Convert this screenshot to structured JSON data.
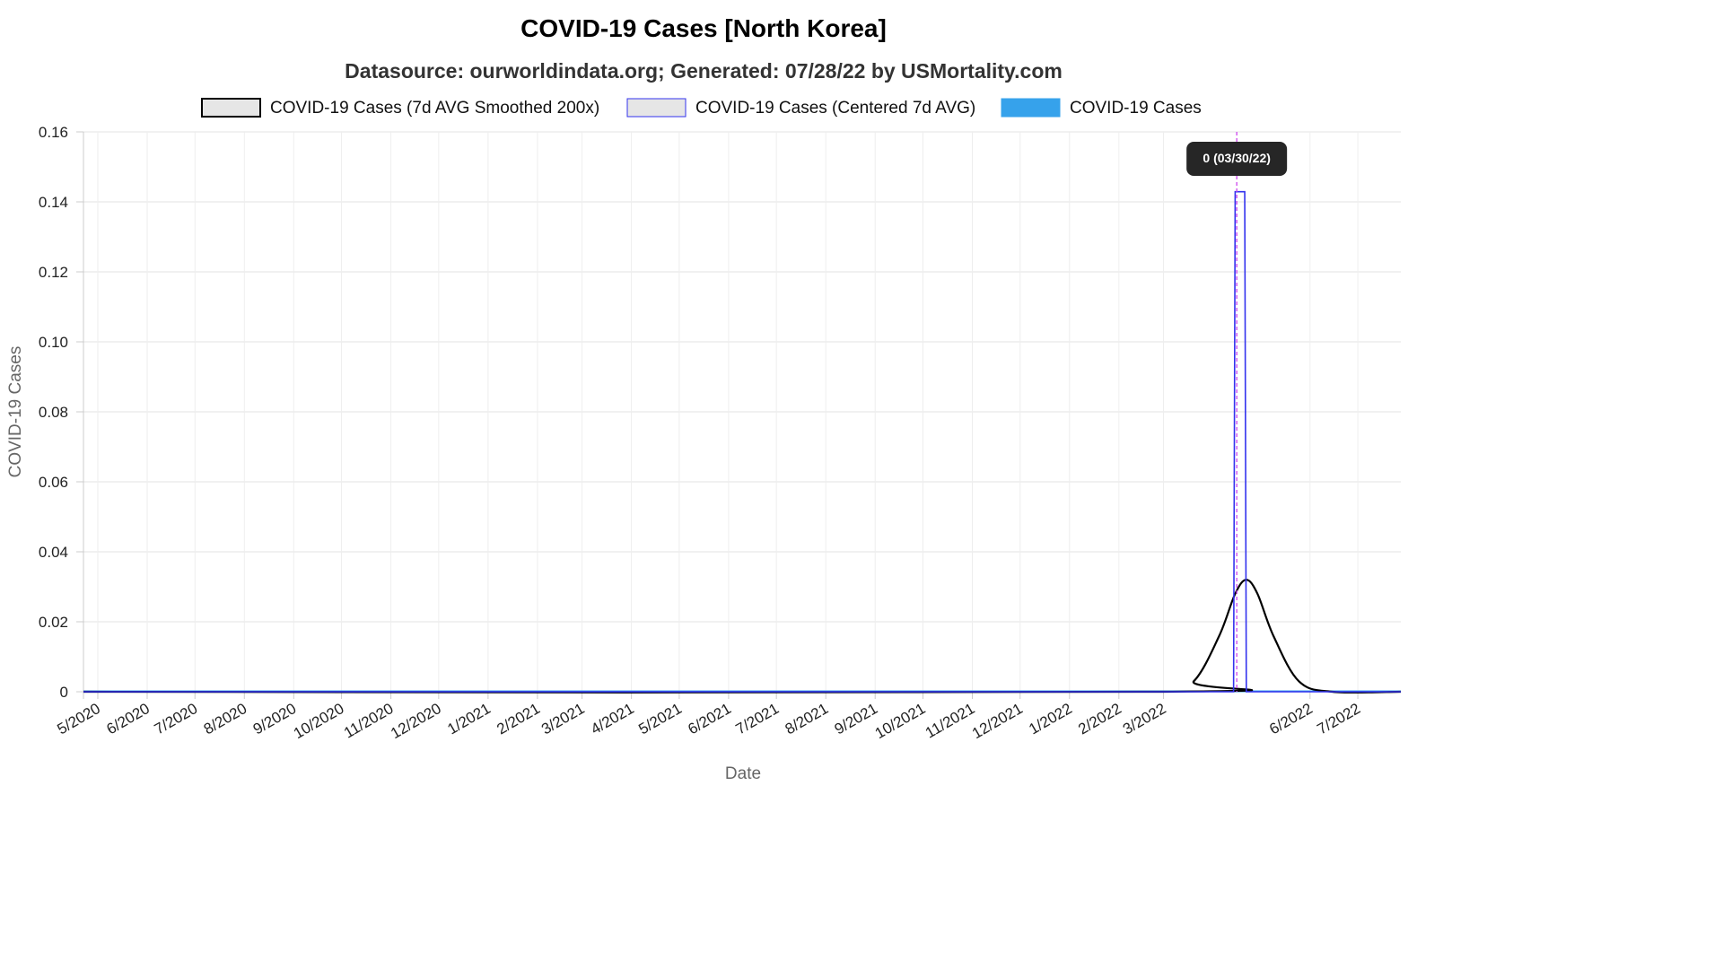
{
  "chart_data": {
    "type": "line",
    "title": "COVID-19 Cases [North Korea]",
    "subtitle": "Datasource: ourworldindata.org; Generated: 07/28/22 by USMortality.com",
    "xlabel": "Date",
    "ylabel": "COVID-19 Cases",
    "x_range": [
      "2020-04-22",
      "2022-07-28"
    ],
    "ylim": [
      0,
      0.16
    ],
    "y_ticks": [
      "0",
      "0.02",
      "0.04",
      "0.06",
      "0.08",
      "0.10",
      "0.12",
      "0.14",
      "0.16"
    ],
    "y_tick_values": [
      0,
      0.02,
      0.04,
      0.06,
      0.08,
      0.1,
      0.12,
      0.14,
      0.16
    ],
    "x_ticks": [
      {
        "label": "5/2020",
        "date": "2020-05-01"
      },
      {
        "label": "6/2020",
        "date": "2020-06-01"
      },
      {
        "label": "7/2020",
        "date": "2020-07-01"
      },
      {
        "label": "8/2020",
        "date": "2020-08-01"
      },
      {
        "label": "9/2020",
        "date": "2020-09-01"
      },
      {
        "label": "10/2020",
        "date": "2020-10-01"
      },
      {
        "label": "11/2020",
        "date": "2020-11-01"
      },
      {
        "label": "12/2020",
        "date": "2020-12-01"
      },
      {
        "label": "1/2021",
        "date": "2021-01-01"
      },
      {
        "label": "2/2021",
        "date": "2021-02-01"
      },
      {
        "label": "3/2021",
        "date": "2021-03-01"
      },
      {
        "label": "4/2021",
        "date": "2021-04-01"
      },
      {
        "label": "5/2021",
        "date": "2021-05-01"
      },
      {
        "label": "6/2021",
        "date": "2021-06-01"
      },
      {
        "label": "7/2021",
        "date": "2021-07-01"
      },
      {
        "label": "8/2021",
        "date": "2021-08-01"
      },
      {
        "label": "9/2021",
        "date": "2021-09-01"
      },
      {
        "label": "10/2021",
        "date": "2021-10-01"
      },
      {
        "label": "11/2021",
        "date": "2021-11-01"
      },
      {
        "label": "12/2021",
        "date": "2021-12-01"
      },
      {
        "label": "1/2022",
        "date": "2022-01-01"
      },
      {
        "label": "2/2022",
        "date": "2022-02-01"
      },
      {
        "label": "3/2022",
        "date": "2022-03-01"
      },
      {
        "label": "6/2022",
        "date": "2022-06-01"
      },
      {
        "label": "7/2022",
        "date": "2022-07-01"
      }
    ],
    "grid": true,
    "legend_position": "top",
    "series": [
      {
        "name": "COVID-19 Cases (7d AVG Smoothed 200x)",
        "color": "#000000",
        "style": "smoothed-line",
        "points": [
          {
            "x": "2020-04-22",
            "y": 0
          },
          {
            "x": "2022-03-01",
            "y": 0
          },
          {
            "x": "2022-03-20",
            "y": 0.003
          },
          {
            "x": "2022-04-05",
            "y": 0.016
          },
          {
            "x": "2022-04-15",
            "y": 0.028
          },
          {
            "x": "2022-04-22",
            "y": 0.032
          },
          {
            "x": "2022-04-29",
            "y": 0.028
          },
          {
            "x": "2022-05-09",
            "y": 0.016
          },
          {
            "x": "2022-05-25",
            "y": 0.003
          },
          {
            "x": "2022-06-15",
            "y": 0
          },
          {
            "x": "2022-07-28",
            "y": 0
          }
        ]
      },
      {
        "name": "COVID-19 Cases (Centered 7d AVG)",
        "color": "#3333ee",
        "style": "step-line",
        "points": [
          {
            "x": "2020-04-22",
            "y": 0
          },
          {
            "x": "2022-04-14",
            "y": 0
          },
          {
            "x": "2022-04-15",
            "y": 0.1429
          },
          {
            "x": "2022-04-21",
            "y": 0.1429
          },
          {
            "x": "2022-04-22",
            "y": 0
          },
          {
            "x": "2022-07-28",
            "y": 0
          }
        ]
      },
      {
        "name": "COVID-19 Cases",
        "color": "#36a2eb",
        "style": "bar",
        "points": [
          {
            "x": "2020-04-22",
            "y": 0
          },
          {
            "x": "2022-07-28",
            "y": 0
          }
        ]
      }
    ],
    "annotation": {
      "label": "0 (03/30/22)",
      "marker_date": "2022-04-16",
      "color": "#cc44ee"
    }
  }
}
